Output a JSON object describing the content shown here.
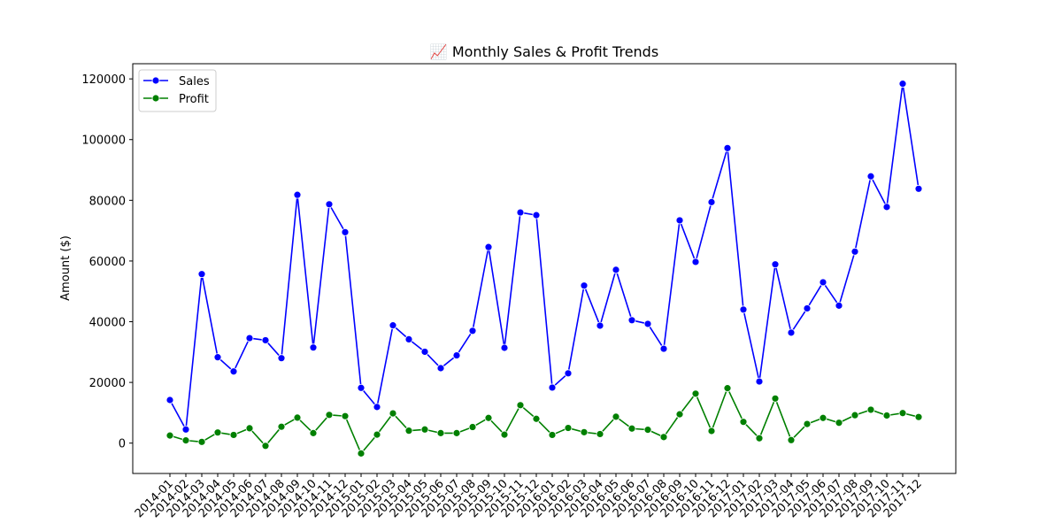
{
  "chart_data": {
    "type": "line",
    "title": "📈 Monthly Sales & Profit Trends",
    "xlabel": "",
    "ylabel": "Amount ($)",
    "ylim": [
      -10000,
      125000
    ],
    "yticks": [
      0,
      20000,
      40000,
      60000,
      80000,
      100000,
      120000
    ],
    "grid": false,
    "legend_position": "top-left",
    "categories": [
      "2014-01",
      "2014-02",
      "2014-03",
      "2014-04",
      "2014-05",
      "2014-06",
      "2014-07",
      "2014-08",
      "2014-09",
      "2014-10",
      "2014-11",
      "2014-12",
      "2015-01",
      "2015-02",
      "2015-03",
      "2015-04",
      "2015-05",
      "2015-06",
      "2015-07",
      "2015-08",
      "2015-09",
      "2015-10",
      "2015-11",
      "2015-12",
      "2016-01",
      "2016-02",
      "2016-03",
      "2016-04",
      "2016-05",
      "2016-06",
      "2016-07",
      "2016-08",
      "2016-09",
      "2016-10",
      "2016-11",
      "2016-12",
      "2017-01",
      "2017-02",
      "2017-03",
      "2017-04",
      "2017-05",
      "2017-06",
      "2017-07",
      "2017-08",
      "2017-09",
      "2017-10",
      "2017-11",
      "2017-12"
    ],
    "series": [
      {
        "name": "Sales",
        "color": "#0000ff",
        "values": [
          14200,
          4500,
          55700,
          28300,
          23600,
          34600,
          33900,
          28000,
          81800,
          31500,
          78700,
          69500,
          18200,
          11900,
          38800,
          34200,
          30100,
          24700,
          28900,
          37000,
          64600,
          31400,
          76000,
          75100,
          18300,
          23000,
          51900,
          38700,
          57100,
          40500,
          39300,
          31100,
          73400,
          59700,
          79400,
          97200,
          44000,
          20300,
          58900,
          36400,
          44400,
          53000,
          45300,
          63100,
          87900,
          77800,
          118400,
          83800
        ]
      },
      {
        "name": "Profit",
        "color": "#008000",
        "values": [
          2500,
          900,
          400,
          3500,
          2700,
          4900,
          -900,
          5400,
          8400,
          3300,
          9300,
          8900,
          -3400,
          2800,
          9800,
          4100,
          4500,
          3300,
          3300,
          5300,
          8300,
          2800,
          12500,
          8000,
          2700,
          5000,
          3600,
          3000,
          8700,
          4800,
          4400,
          2000,
          9500,
          16300,
          4000,
          18100,
          7000,
          1600,
          14700,
          1000,
          6300,
          8300,
          6700,
          9200,
          11000,
          9100,
          9900,
          8600
        ]
      }
    ]
  }
}
